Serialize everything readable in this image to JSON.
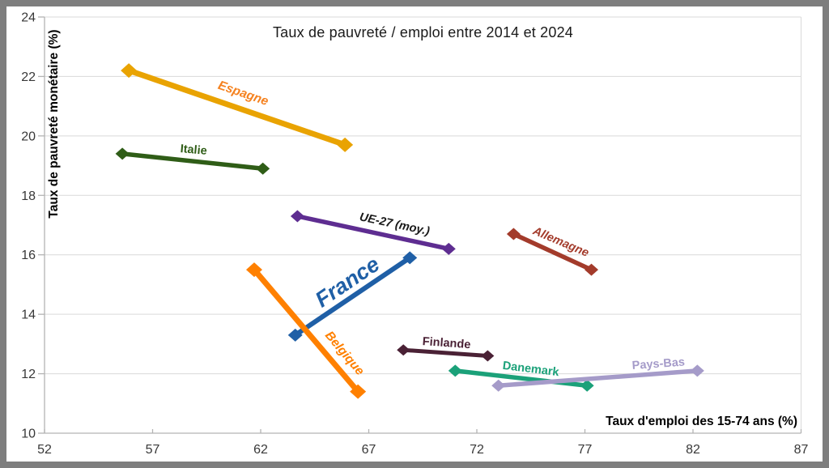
{
  "frame": {
    "border_color": "#7e7e7e",
    "background": "#ffffff"
  },
  "chart_data": {
    "type": "line",
    "title": "Taux de pauvreté / emploi entre 2014 et 2024",
    "xlabel": "Taux d'emploi des 15-74 ans (%)",
    "ylabel": "Taux de pauvreté monétaire (%)",
    "xlim": [
      52,
      87
    ],
    "ylim": [
      10,
      24
    ],
    "x_ticks": [
      52,
      57,
      62,
      67,
      72,
      77,
      82,
      87
    ],
    "y_ticks": [
      10,
      12,
      14,
      16,
      18,
      20,
      22,
      24
    ],
    "grid": "horizontal-only",
    "legend": "inline-labels-on-lines",
    "marker": "diamond-at-both-ends",
    "colors": {
      "gridline": "#d9d9d9",
      "axis": "#b3b3b3",
      "tick_label": "#383838"
    },
    "series": [
      {
        "name": "Espagne",
        "color": "#e9a302",
        "label_color": "#f58220",
        "italic": true,
        "width": 7,
        "points": {
          "2014": [
            55.9,
            22.2
          ],
          "2024": [
            65.9,
            19.7
          ]
        },
        "label": {
          "x": 61.2,
          "y": 21.45,
          "angle": 19,
          "size": 15.5
        }
      },
      {
        "name": "Italie",
        "color": "#2f5d17",
        "label_color": "#2f5d17",
        "italic": false,
        "width": 5.5,
        "points": {
          "2014": [
            55.6,
            19.4
          ],
          "2024": [
            62.1,
            18.9
          ]
        },
        "label": {
          "x": 58.9,
          "y": 19.55,
          "angle": 5,
          "size": 14.5
        }
      },
      {
        "name": "UE-27 (moy.)",
        "color": "#5e2d91",
        "label_color": "#1a1a1a",
        "italic": true,
        "width": 5.5,
        "points": {
          "2014": [
            63.7,
            17.3
          ],
          "2024": [
            70.7,
            16.2
          ]
        },
        "label": {
          "x": 68.2,
          "y": 17.05,
          "angle": 12,
          "size": 14.5
        }
      },
      {
        "name": "France",
        "color": "#1f5fa6",
        "label_color": "#1f5fa6",
        "italic": true,
        "width": 6,
        "points": {
          "2014": [
            63.6,
            13.3
          ],
          "2024": [
            68.9,
            15.9
          ]
        },
        "label": {
          "x": 66.0,
          "y": 15.1,
          "angle": -34,
          "size": 27
        }
      },
      {
        "name": "Belgique",
        "color": "#ff8000",
        "label_color": "#ff8000",
        "italic": true,
        "width": 7,
        "points": {
          "2014": [
            61.7,
            15.5
          ],
          "2024": [
            66.5,
            11.4
          ]
        },
        "label": {
          "x": 65.9,
          "y": 12.7,
          "angle": 50,
          "size": 15.5
        }
      },
      {
        "name": "Allemagne",
        "color": "#a33b2b",
        "label_color": "#a33b2b",
        "italic": true,
        "width": 5.5,
        "points": {
          "2014": [
            73.7,
            16.7
          ],
          "2024": [
            77.3,
            15.5
          ]
        },
        "label": {
          "x": 75.9,
          "y": 16.45,
          "angle": 23,
          "size": 14.5
        }
      },
      {
        "name": "Finlande",
        "color": "#4a2135",
        "label_color": "#4a2135",
        "italic": false,
        "width": 5,
        "points": {
          "2014": [
            68.6,
            12.8
          ],
          "2024": [
            72.5,
            12.6
          ]
        },
        "label": {
          "x": 70.6,
          "y": 13.05,
          "angle": 4,
          "size": 14.5
        }
      },
      {
        "name": "Danemark",
        "color": "#1ba179",
        "label_color": "#1ba179",
        "italic": false,
        "width": 5.5,
        "points": {
          "2014": [
            71.0,
            12.1
          ],
          "2024": [
            77.1,
            11.6
          ]
        },
        "label": {
          "x": 74.5,
          "y": 12.18,
          "angle": 7,
          "size": 14.5
        }
      },
      {
        "name": "Pays-Bas",
        "color": "#a59bc9",
        "label_color": "#a59bc9",
        "italic": false,
        "width": 5.5,
        "points": {
          "2014": [
            73.0,
            11.6
          ],
          "2024": [
            82.2,
            12.1
          ]
        },
        "label": {
          "x": 80.4,
          "y": 12.35,
          "angle": -4,
          "size": 14.5
        }
      }
    ]
  }
}
